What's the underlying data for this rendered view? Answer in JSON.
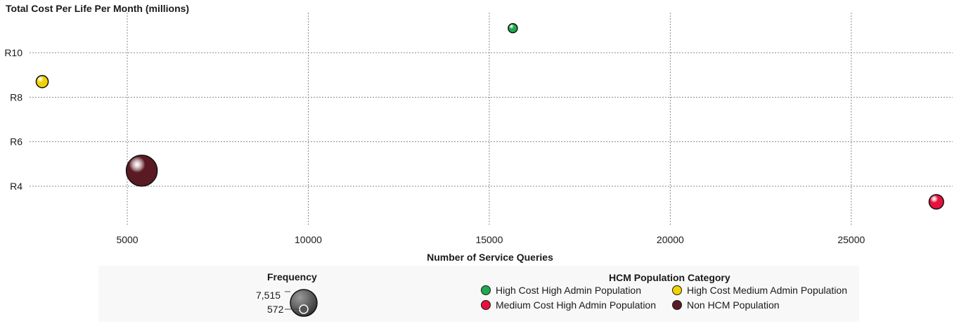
{
  "chart_data": {
    "type": "scatter",
    "xlabel": "Number of Service Queries",
    "ylabel": "Total Cost Per Life Per Month (millions)",
    "x_ticks": [
      5000,
      10000,
      15000,
      20000,
      25000
    ],
    "y_ticks": [
      4,
      6,
      8,
      10
    ],
    "y_tick_prefix": "R",
    "xlim": [
      2300,
      27800
    ],
    "ylim": [
      2.2,
      11.8
    ],
    "grid": true,
    "series": [
      {
        "name": "High Cost High Admin Population",
        "color": "#1faa4f",
        "points": [
          {
            "x": 15650,
            "y": 11.1,
            "size": 572
          }
        ]
      },
      {
        "name": "High Cost Medium Admin Population",
        "color": "#f2d200",
        "points": [
          {
            "x": 2650,
            "y": 8.7,
            "size": 700
          }
        ]
      },
      {
        "name": "Medium Cost High Admin Population",
        "color": "#e8113b",
        "points": [
          {
            "x": 27350,
            "y": 3.3,
            "size": 1000
          }
        ]
      },
      {
        "name": "Non HCM Population",
        "color": "#5a1a24",
        "points": [
          {
            "x": 5400,
            "y": 4.7,
            "size": 7515
          }
        ]
      }
    ],
    "legend": {
      "title": "HCM Population Category",
      "placement": "bottom"
    },
    "size_legend": {
      "title": "Frequency",
      "max_label": "7,515",
      "min_label": "572",
      "max_value": 7515,
      "min_value": 572
    }
  }
}
